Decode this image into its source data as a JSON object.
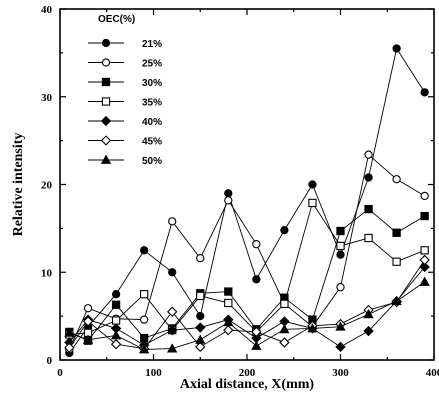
{
  "chart_data": {
    "type": "line",
    "title": "",
    "xlabel": "Axial distance, X(mm)",
    "ylabel": "Relative intensity",
    "xlim": [
      0,
      400
    ],
    "ylim": [
      0,
      40
    ],
    "xticks": [
      0,
      100,
      200,
      300,
      400
    ],
    "yticks": [
      0,
      10,
      20,
      30,
      40
    ],
    "grid": false,
    "legend": {
      "title": "OEC(%)",
      "placement": "top-left"
    },
    "x": [
      10,
      30,
      60,
      90,
      120,
      150,
      180,
      210,
      240,
      270,
      300,
      330,
      360,
      390
    ],
    "series": [
      {
        "name": "21%",
        "marker": "circle-filled",
        "values": [
          0.8,
          3.8,
          7.5,
          12.5,
          10.0,
          5.0,
          19.0,
          9.2,
          14.8,
          20.0,
          12.0,
          20.8,
          35.5,
          30.5
        ]
      },
      {
        "name": "25%",
        "marker": "circle-open",
        "values": [
          1.2,
          5.9,
          4.7,
          4.6,
          15.8,
          11.6,
          18.2,
          13.2,
          6.4,
          3.8,
          8.3,
          23.4,
          20.6,
          18.7
        ]
      },
      {
        "name": "30%",
        "marker": "square-filled",
        "values": [
          3.2,
          2.2,
          6.3,
          2.5,
          3.6,
          7.6,
          7.8,
          3.5,
          7.1,
          4.6,
          14.7,
          17.2,
          14.5,
          16.4
        ]
      },
      {
        "name": "35%",
        "marker": "square-open",
        "values": [
          2.9,
          3.1,
          4.5,
          7.5,
          3.4,
          7.3,
          6.5,
          3.2,
          6.4,
          17.9,
          13.0,
          13.9,
          11.2,
          12.5
        ]
      },
      {
        "name": "40%",
        "marker": "diamond-filled",
        "values": [
          2.0,
          4.6,
          3.6,
          1.7,
          3.4,
          3.7,
          4.6,
          2.5,
          4.4,
          3.6,
          1.5,
          3.3,
          6.7,
          10.6
        ]
      },
      {
        "name": "45%",
        "marker": "diamond-open",
        "values": [
          1.4,
          4.4,
          1.8,
          1.3,
          5.5,
          1.5,
          3.4,
          3.2,
          2.0,
          3.9,
          4.1,
          5.7,
          6.6,
          11.4
        ]
      },
      {
        "name": "50%",
        "marker": "triangle-filled",
        "values": [
          3.1,
          2.3,
          2.8,
          1.2,
          1.3,
          2.3,
          4.3,
          1.6,
          3.5,
          3.6,
          3.8,
          5.2,
          6.7,
          8.9
        ]
      }
    ]
  }
}
